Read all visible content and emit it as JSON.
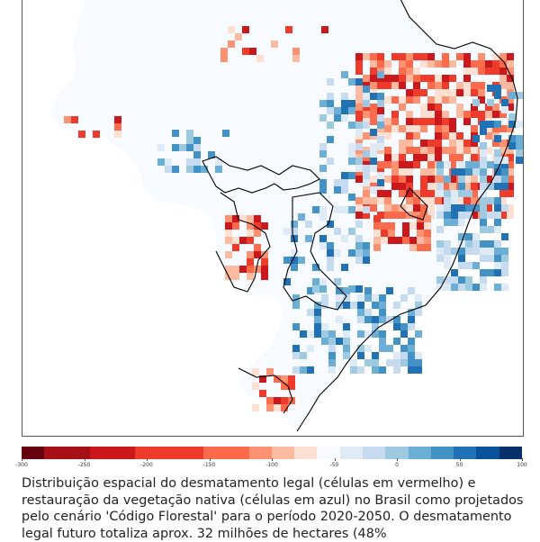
{
  "map": {
    "title": "Distribuição espacial do desmatamento legal e restauração da vegetação nativa no Brasil",
    "region": "Brasil",
    "outline_color": "#000000",
    "land_color": "#f7fbff"
  },
  "legend": {
    "min": -300,
    "max": 100,
    "tick_labels": [
      "-300",
      "-250",
      "-200",
      "-150",
      "-100",
      "-50",
      "0",
      "50",
      "100"
    ],
    "tick_values": [
      -300,
      -250,
      -200,
      -150,
      -100,
      -50,
      0,
      50,
      100
    ],
    "colors": [
      "#67000d",
      "#a50f15",
      "#a50f15",
      "#cb181d",
      "#cb181d",
      "#ef3b2c",
      "#ef3b2c",
      "#ef3b2c",
      "#fb6a4a",
      "#fb6a4a",
      "#fc9272",
      "#fcbba1",
      "#fee0d2",
      "#f7fbff",
      "#deebf7",
      "#c6dbef",
      "#9ecae1",
      "#6baed6",
      "#4292c6",
      "#2171b5",
      "#08519c",
      "#08306b"
    ]
  },
  "caption": {
    "text": "Distribuição espacial do desmatamento legal (células em vermelho) e restauração da vegetação nativa (células em azul) no Brasil como projetados pelo cenário 'Código Florestal' para o período 2020-2050. O desmatamento legal futuro totaliza aprox. 32 milhões de hectares (48%"
  }
}
